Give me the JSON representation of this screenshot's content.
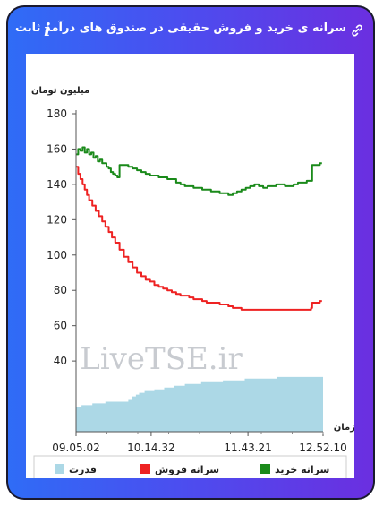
{
  "header": {
    "title": "سرانه ی خرید و فروش حقیقی در صندوق های درآمد ثابت",
    "info_icon": "i",
    "link_icon": "link-icon"
  },
  "watermark": "LiveTSE.ir",
  "colors": {
    "buy": "#1a8a1a",
    "sell": "#ee2222",
    "power": "#acd8e6",
    "frame_left": "#2f6cf6",
    "frame_right": "#6b2fe0"
  },
  "chart_data": {
    "type": "line",
    "ylabel": "میلیون تومان",
    "xlabel": "زمان",
    "ylim": [
      0,
      180
    ],
    "yticks": [
      40,
      60,
      80,
      100,
      120,
      140,
      160,
      180
    ],
    "xlim": [
      545,
      772
    ],
    "x_tick_labels": [
      "09.05.02",
      "10.14.32",
      "11.43.21",
      "12.52.10"
    ],
    "x_tick_values": [
      545,
      614,
      703,
      772
    ],
    "grid": false,
    "legend_position": "bottom",
    "series": [
      {
        "name": "سرانه خرید",
        "color": "#1a8a1a",
        "x": [
          545,
          547,
          549,
          551,
          553,
          555,
          557,
          559,
          561,
          563,
          565,
          567,
          569,
          571,
          573,
          575,
          577,
          579,
          581,
          583,
          584,
          585,
          589,
          593,
          597,
          601,
          605,
          609,
          613,
          617,
          621,
          625,
          629,
          633,
          637,
          641,
          645,
          649,
          653,
          657,
          661,
          665,
          669,
          673,
          677,
          681,
          685,
          689,
          693,
          697,
          701,
          705,
          709,
          713,
          717,
          721,
          725,
          729,
          733,
          737,
          741,
          745,
          749,
          753,
          757,
          761,
          762,
          765,
          769,
          771
        ],
        "values": [
          157,
          160,
          159,
          161,
          158,
          160,
          157,
          158,
          155,
          156,
          153,
          154,
          152,
          152,
          150,
          149,
          147,
          146,
          145,
          144,
          144,
          151,
          151,
          150,
          149,
          148,
          147,
          146,
          145,
          145,
          144,
          144,
          143,
          143,
          141,
          140,
          139,
          139,
          138,
          138,
          137,
          137,
          136,
          136,
          135,
          135,
          134,
          135,
          136,
          137,
          138,
          139,
          140,
          139,
          138,
          139,
          139,
          140,
          140,
          139,
          139,
          140,
          141,
          141,
          142,
          142,
          151,
          151,
          152,
          152
        ]
      },
      {
        "name": "سرانه فروش",
        "color": "#ee2222",
        "x": [
          545,
          547,
          549,
          551,
          553,
          555,
          557,
          560,
          563,
          566,
          569,
          572,
          575,
          578,
          581,
          585,
          589,
          593,
          597,
          601,
          605,
          609,
          613,
          617,
          621,
          625,
          629,
          633,
          637,
          641,
          645,
          649,
          653,
          657,
          661,
          665,
          669,
          673,
          677,
          681,
          685,
          689,
          693,
          697,
          701,
          705,
          709,
          713,
          717,
          721,
          725,
          729,
          733,
          737,
          741,
          745,
          749,
          753,
          757,
          761,
          762,
          765,
          769,
          771
        ],
        "values": [
          150,
          146,
          143,
          140,
          137,
          134,
          131,
          128,
          125,
          122,
          119,
          116,
          113,
          110,
          107,
          103,
          99,
          96,
          93,
          90,
          88,
          86,
          85,
          83,
          82,
          81,
          80,
          79,
          78,
          77,
          77,
          76,
          75,
          75,
          74,
          73,
          73,
          73,
          72,
          72,
          71,
          70,
          70,
          69,
          69,
          69,
          69,
          69,
          69,
          69,
          69,
          69,
          69,
          69,
          69,
          69,
          69,
          69,
          69,
          70,
          73,
          73,
          74,
          74
        ]
      },
      {
        "name": "قدرت",
        "color": "#acd8e6",
        "type": "area",
        "x": [
          545,
          548,
          550,
          558,
          560,
          570,
          572,
          575,
          590,
          593,
          596,
          600,
          603,
          608,
          612,
          617,
          621,
          626,
          630,
          635,
          640,
          645,
          650,
          655,
          660,
          665,
          670,
          675,
          680,
          685,
          690,
          695,
          700,
          705,
          710,
          715,
          720,
          725,
          730,
          735,
          740,
          745,
          750,
          755,
          760,
          765,
          772
        ],
        "values": [
          14,
          14,
          15,
          15,
          16,
          16,
          17,
          17,
          17,
          18,
          20,
          21,
          22,
          23,
          23,
          24,
          24,
          25,
          25,
          26,
          26,
          27,
          27,
          27,
          28,
          28,
          28,
          28,
          29,
          29,
          29,
          29,
          30,
          30,
          30,
          30,
          30,
          30,
          31,
          31,
          31,
          31,
          31,
          31,
          31,
          31,
          31
        ]
      }
    ]
  }
}
